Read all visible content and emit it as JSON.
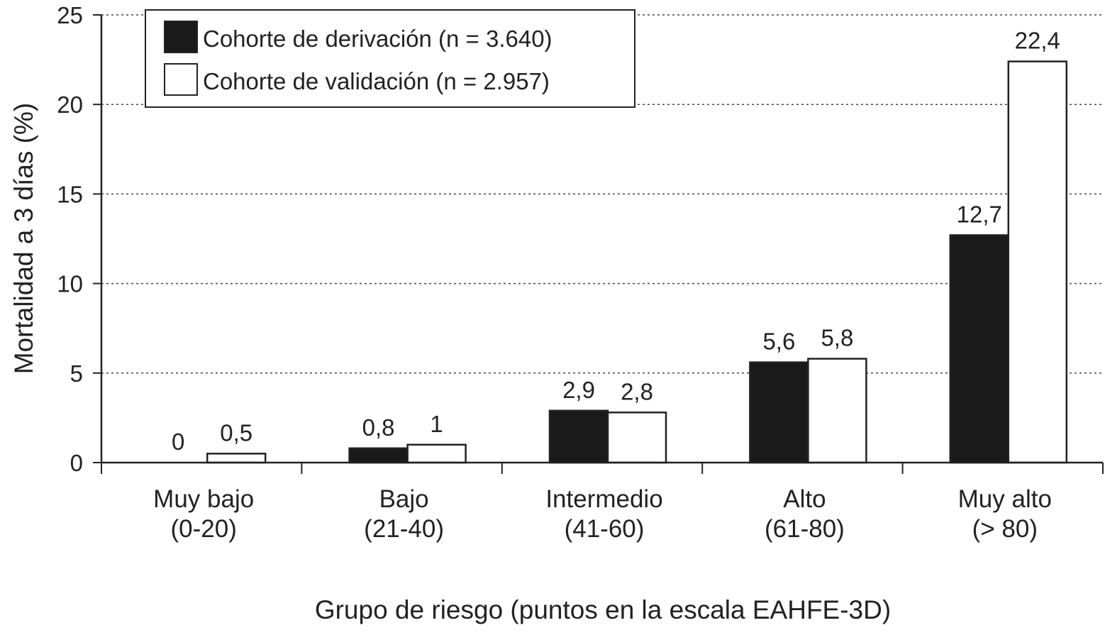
{
  "chart_data": {
    "type": "bar",
    "categories": [
      [
        "Muy bajo",
        "(0-20)"
      ],
      [
        "Bajo",
        "(21-40)"
      ],
      [
        "Intermedio",
        "(41-60)"
      ],
      [
        "Alto",
        "(61-80)"
      ],
      [
        "Muy alto",
        "(> 80)"
      ]
    ],
    "series": [
      {
        "name": "Cohorte de derivación (n = 3.640)",
        "values": [
          0,
          0.8,
          2.9,
          5.6,
          12.7
        ],
        "labels": [
          "0",
          "0,8",
          "2,9",
          "5,6",
          "12,7"
        ],
        "fill": "#1a1a1a"
      },
      {
        "name": "Cohorte de validación (n = 2.957)",
        "values": [
          0.5,
          1,
          2.8,
          5.8,
          22.4
        ],
        "labels": [
          "0,5",
          "1",
          "2,8",
          "5,8",
          "22,4"
        ],
        "fill": "#ffffff"
      }
    ],
    "xlabel": "Grupo de riesgo (puntos en la escala EAHFE-3D)",
    "ylabel": "Mortalidad a 3 días (%)",
    "ylim": [
      0,
      25
    ],
    "yticks": [
      0,
      5,
      10,
      15,
      20,
      25
    ],
    "grid": "horizontal-dotted",
    "legend_position": "top-left"
  }
}
